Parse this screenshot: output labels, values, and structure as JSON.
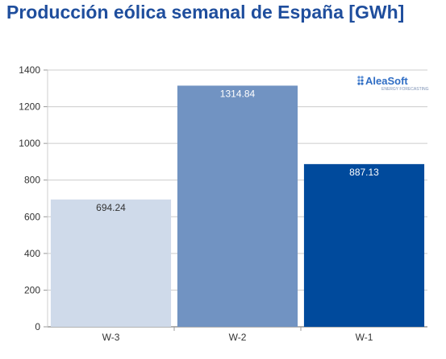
{
  "title": "Producción eólica semanal de España [GWh]",
  "brand": {
    "name": "AleaSoft",
    "tagline": "ENERGY FORECASTING"
  },
  "chart_data": {
    "type": "bar",
    "title": "Producción eólica semanal de España [GWh]",
    "categories": [
      "W-3",
      "W-2",
      "W-1"
    ],
    "values": [
      694.24,
      1314.84,
      887.13
    ],
    "value_labels": [
      "694.24",
      "1314.84",
      "887.13"
    ],
    "colors": [
      "#cfdaea",
      "#7193c2",
      "#004a9c"
    ],
    "label_colors": [
      "#333333",
      "#ffffff",
      "#ffffff"
    ],
    "ylim": [
      0,
      1400
    ],
    "yticks": [
      "0",
      "200",
      "400",
      "600",
      "800",
      "1000",
      "1200",
      "1400"
    ],
    "xlabel": "",
    "ylabel": "",
    "grid": true,
    "legend": "none"
  }
}
